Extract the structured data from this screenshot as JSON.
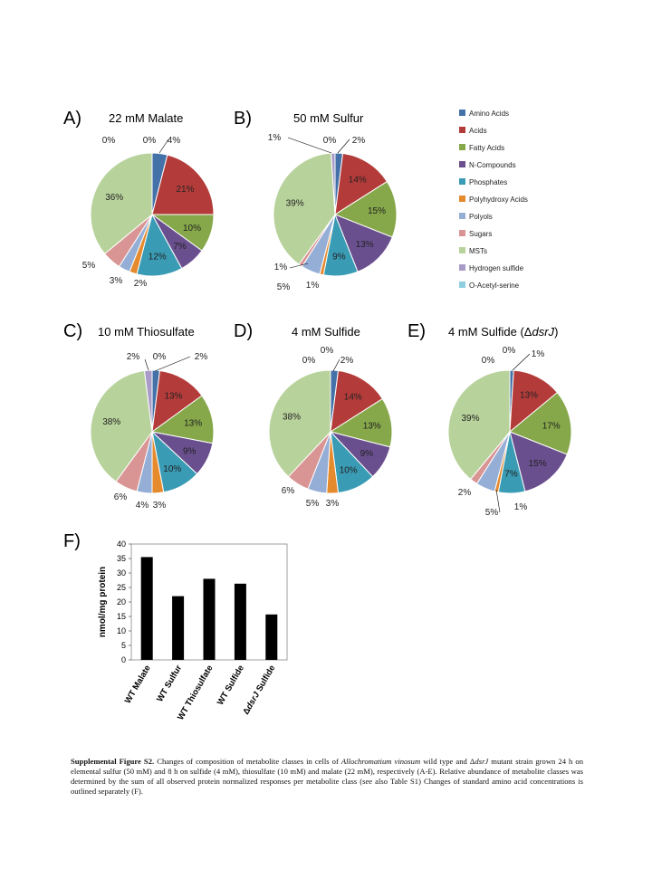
{
  "legend": {
    "entries": [
      {
        "label": "Amino Acids",
        "color": "#4472a8"
      },
      {
        "label": "Acids",
        "color": "#b33c3a"
      },
      {
        "label": "Fatty Acids",
        "color": "#86a84a"
      },
      {
        "label": "N-Compounds",
        "color": "#6a4f8e"
      },
      {
        "label": "Phosphates",
        "color": "#3a9bb4"
      },
      {
        "label": "Polyhydroxy Acids",
        "color": "#e68a2e"
      },
      {
        "label": "Polyols",
        "color": "#95aed6"
      },
      {
        "label": "Sugars",
        "color": "#d99594"
      },
      {
        "label": "MSTs",
        "color": "#b8d29b"
      },
      {
        "label": "Hydrogen sulfide",
        "color": "#a99bc8"
      },
      {
        "label": "O-Acetyl-serine",
        "color": "#8ecfdf"
      }
    ]
  },
  "chart_data": [
    {
      "type": "pie",
      "panel": "A)",
      "title": "22 mM Malate",
      "categories": [
        "Amino Acids",
        "Acids",
        "Fatty Acids",
        "N-Compounds",
        "Phosphates",
        "Polyhydroxy Acids",
        "Polyols",
        "Sugars",
        "MSTs",
        "Hydrogen sulfide",
        "O-Acetyl-serine"
      ],
      "values": [
        4,
        21,
        10,
        7,
        12,
        2,
        3,
        5,
        36,
        0,
        0
      ],
      "labels": [
        "4%",
        "21%",
        "10%",
        "7%",
        "12%",
        "2%",
        "3%",
        "5%",
        "36%",
        "0%",
        "0%"
      ]
    },
    {
      "type": "pie",
      "panel": "B)",
      "title": "50 mM Sulfur",
      "categories": [
        "Amino Acids",
        "Acids",
        "Fatty Acids",
        "N-Compounds",
        "Phosphates",
        "Polyhydroxy Acids",
        "Polyols",
        "Sugars",
        "MSTs",
        "Hydrogen sulfide",
        "O-Acetyl-serine"
      ],
      "values": [
        2,
        14,
        15,
        13,
        9,
        1,
        5,
        1,
        39,
        1,
        0
      ],
      "labels": [
        "2%",
        "14%",
        "15%",
        "13%",
        "9%",
        "1%",
        "5%",
        "1%",
        "39%",
        "1%",
        "0%"
      ]
    },
    {
      "type": "pie",
      "panel": "C)",
      "title": "10 mM Thiosulfate",
      "categories": [
        "Amino Acids",
        "Acids",
        "Fatty Acids",
        "N-Compounds",
        "Phosphates",
        "Polyhydroxy Acids",
        "Polyols",
        "Sugars",
        "MSTs",
        "Hydrogen sulfide",
        "O-Acetyl-serine"
      ],
      "values": [
        2,
        13,
        13,
        9,
        10,
        3,
        4,
        6,
        38,
        2,
        0
      ],
      "labels": [
        "2%",
        "13%",
        "13%",
        "9%",
        "10%",
        "3%",
        "4%",
        "6%",
        "38%",
        "2%",
        "0%"
      ]
    },
    {
      "type": "pie",
      "panel": "D)",
      "title": "4 mM Sulfide",
      "categories": [
        "Amino Acids",
        "Acids",
        "Fatty Acids",
        "N-Compounds",
        "Phosphates",
        "Polyhydroxy Acids",
        "Polyols",
        "Sugars",
        "MSTs",
        "Hydrogen sulfide",
        "O-Acetyl-serine"
      ],
      "values": [
        2,
        14,
        13,
        9,
        10,
        3,
        5,
        6,
        38,
        0,
        0
      ],
      "labels": [
        "2%",
        "14%",
        "13%",
        "9%",
        "10%",
        "3%",
        "5%",
        "6%",
        "38%",
        "0%",
        "0%"
      ]
    },
    {
      "type": "pie",
      "panel": "E)",
      "title_prefix": "4 mM Sulfide (Δ",
      "title_italic": "dsrJ",
      "title_suffix": ")",
      "categories": [
        "Amino Acids",
        "Acids",
        "Fatty Acids",
        "N-Compounds",
        "Phosphates",
        "Polyhydroxy Acids",
        "Polyols",
        "Sugars",
        "MSTs",
        "Hydrogen sulfide",
        "O-Acetyl-serine"
      ],
      "values": [
        1,
        13,
        17,
        15,
        7,
        1,
        5,
        2,
        39,
        0,
        0
      ],
      "labels": [
        "1%",
        "13%",
        "17%",
        "15%",
        "7%",
        "1%",
        "5%",
        "2%",
        "39%",
        "0%",
        "0%"
      ]
    },
    {
      "type": "bar",
      "panel": "F)",
      "categories": [
        "WT Malate",
        "WT Sulfur",
        "WT Thiosulfate",
        "WT Sulfide",
        "ΔdsrJ Sulfide"
      ],
      "values": [
        35.5,
        22,
        28,
        26.3,
        15.7
      ],
      "ylabel": "nmol/mg protein",
      "ylim": [
        0,
        40
      ],
      "yticks": [
        "0",
        "5",
        "10",
        "15",
        "20",
        "25",
        "30",
        "35",
        "40"
      ],
      "bar_color": "#000000"
    }
  ],
  "caption": {
    "bold": "Supplemental Figure S2.",
    "t1": " Changes of composition of metabolite classes in cells of ",
    "organism": "Allochromatium vinosum",
    "t2": " wild type and Δ",
    "mutant": "dsrJ",
    "t3": " mutant strain grown 24 h on elemental sulfur (50 mM) and 8 h on sulfide (4 mM), thiosulfate (10 mM) and malate (22 mM), respectively (A-E). Relative abundance of metabolite classes was determined by the sum of all observed protein normalized responses per metabolite class (see also Table S1) Changes of standard amino acid concentrations is outlined separately (F)."
  }
}
